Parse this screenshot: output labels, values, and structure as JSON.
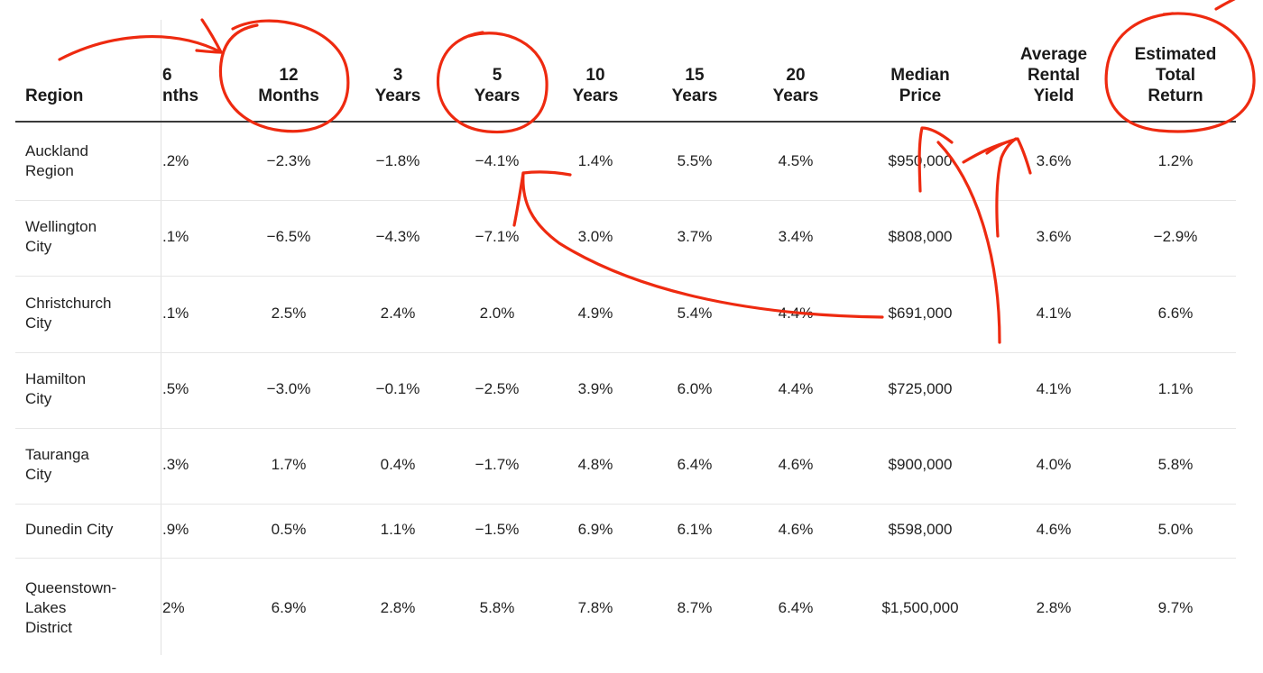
{
  "table": {
    "headers": [
      {
        "key": "region",
        "label": "Region"
      },
      {
        "key": "m6",
        "label": "6\nnths"
      },
      {
        "key": "m12",
        "label": "12\nMonths"
      },
      {
        "key": "y3",
        "label": "3\nYears"
      },
      {
        "key": "y5",
        "label": "5\nYears"
      },
      {
        "key": "y10",
        "label": "10\nYears"
      },
      {
        "key": "y15",
        "label": "15\nYears"
      },
      {
        "key": "y20",
        "label": "20\nYears"
      },
      {
        "key": "median",
        "label": "Median\nPrice"
      },
      {
        "key": "yield",
        "label": "Average\nRental\nYield"
      },
      {
        "key": "total",
        "label": "Estimated\nTotal\nReturn"
      }
    ],
    "rows": [
      {
        "region": "Auckland\nRegion",
        "m6": ".2%",
        "m12": "−2.3%",
        "y3": "−1.8%",
        "y5": "−4.1%",
        "y10": "1.4%",
        "y15": "5.5%",
        "y20": "4.5%",
        "median": "$950,000",
        "yield": "3.6%",
        "total": "1.2%"
      },
      {
        "region": "Wellington\nCity",
        "m6": ".1%",
        "m12": "−6.5%",
        "y3": "−4.3%",
        "y5": "−7.1%",
        "y10": "3.0%",
        "y15": "3.7%",
        "y20": "3.4%",
        "median": "$808,000",
        "yield": "3.6%",
        "total": "−2.9%"
      },
      {
        "region": "Christchurch\nCity",
        "m6": ".1%",
        "m12": "2.5%",
        "y3": "2.4%",
        "y5": "2.0%",
        "y10": "4.9%",
        "y15": "5.4%",
        "y20": "4.4%",
        "median": "$691,000",
        "yield": "4.1%",
        "total": "6.6%"
      },
      {
        "region": "Hamilton\nCity",
        "m6": ".5%",
        "m12": "−3.0%",
        "y3": "−0.1%",
        "y5": "−2.5%",
        "y10": "3.9%",
        "y15": "6.0%",
        "y20": "4.4%",
        "median": "$725,000",
        "yield": "4.1%",
        "total": "1.1%"
      },
      {
        "region": "Tauranga\nCity",
        "m6": ".3%",
        "m12": "1.7%",
        "y3": "0.4%",
        "y5": "−1.7%",
        "y10": "4.8%",
        "y15": "6.4%",
        "y20": "4.6%",
        "median": "$900,000",
        "yield": "4.0%",
        "total": "5.8%"
      },
      {
        "region": "Dunedin City",
        "m6": ".9%",
        "m12": "0.5%",
        "y3": "1.1%",
        "y5": "−1.5%",
        "y10": "6.9%",
        "y15": "6.1%",
        "y20": "4.6%",
        "median": "$598,000",
        "yield": "4.6%",
        "total": "5.0%"
      },
      {
        "region": "Queenstown-\nLakes\nDistrict",
        "m6": "2%",
        "m12": "6.9%",
        "y3": "2.8%",
        "y5": "5.8%",
        "y10": "7.8%",
        "y15": "8.7%",
        "y20": "6.4%",
        "median": "$1,500,000",
        "yield": "2.8%",
        "total": "9.7%"
      }
    ]
  },
  "annotations": {
    "color": "#ee2a10",
    "circled_headers": [
      "12 Months",
      "5 Years",
      "Estimated Total Return"
    ]
  }
}
